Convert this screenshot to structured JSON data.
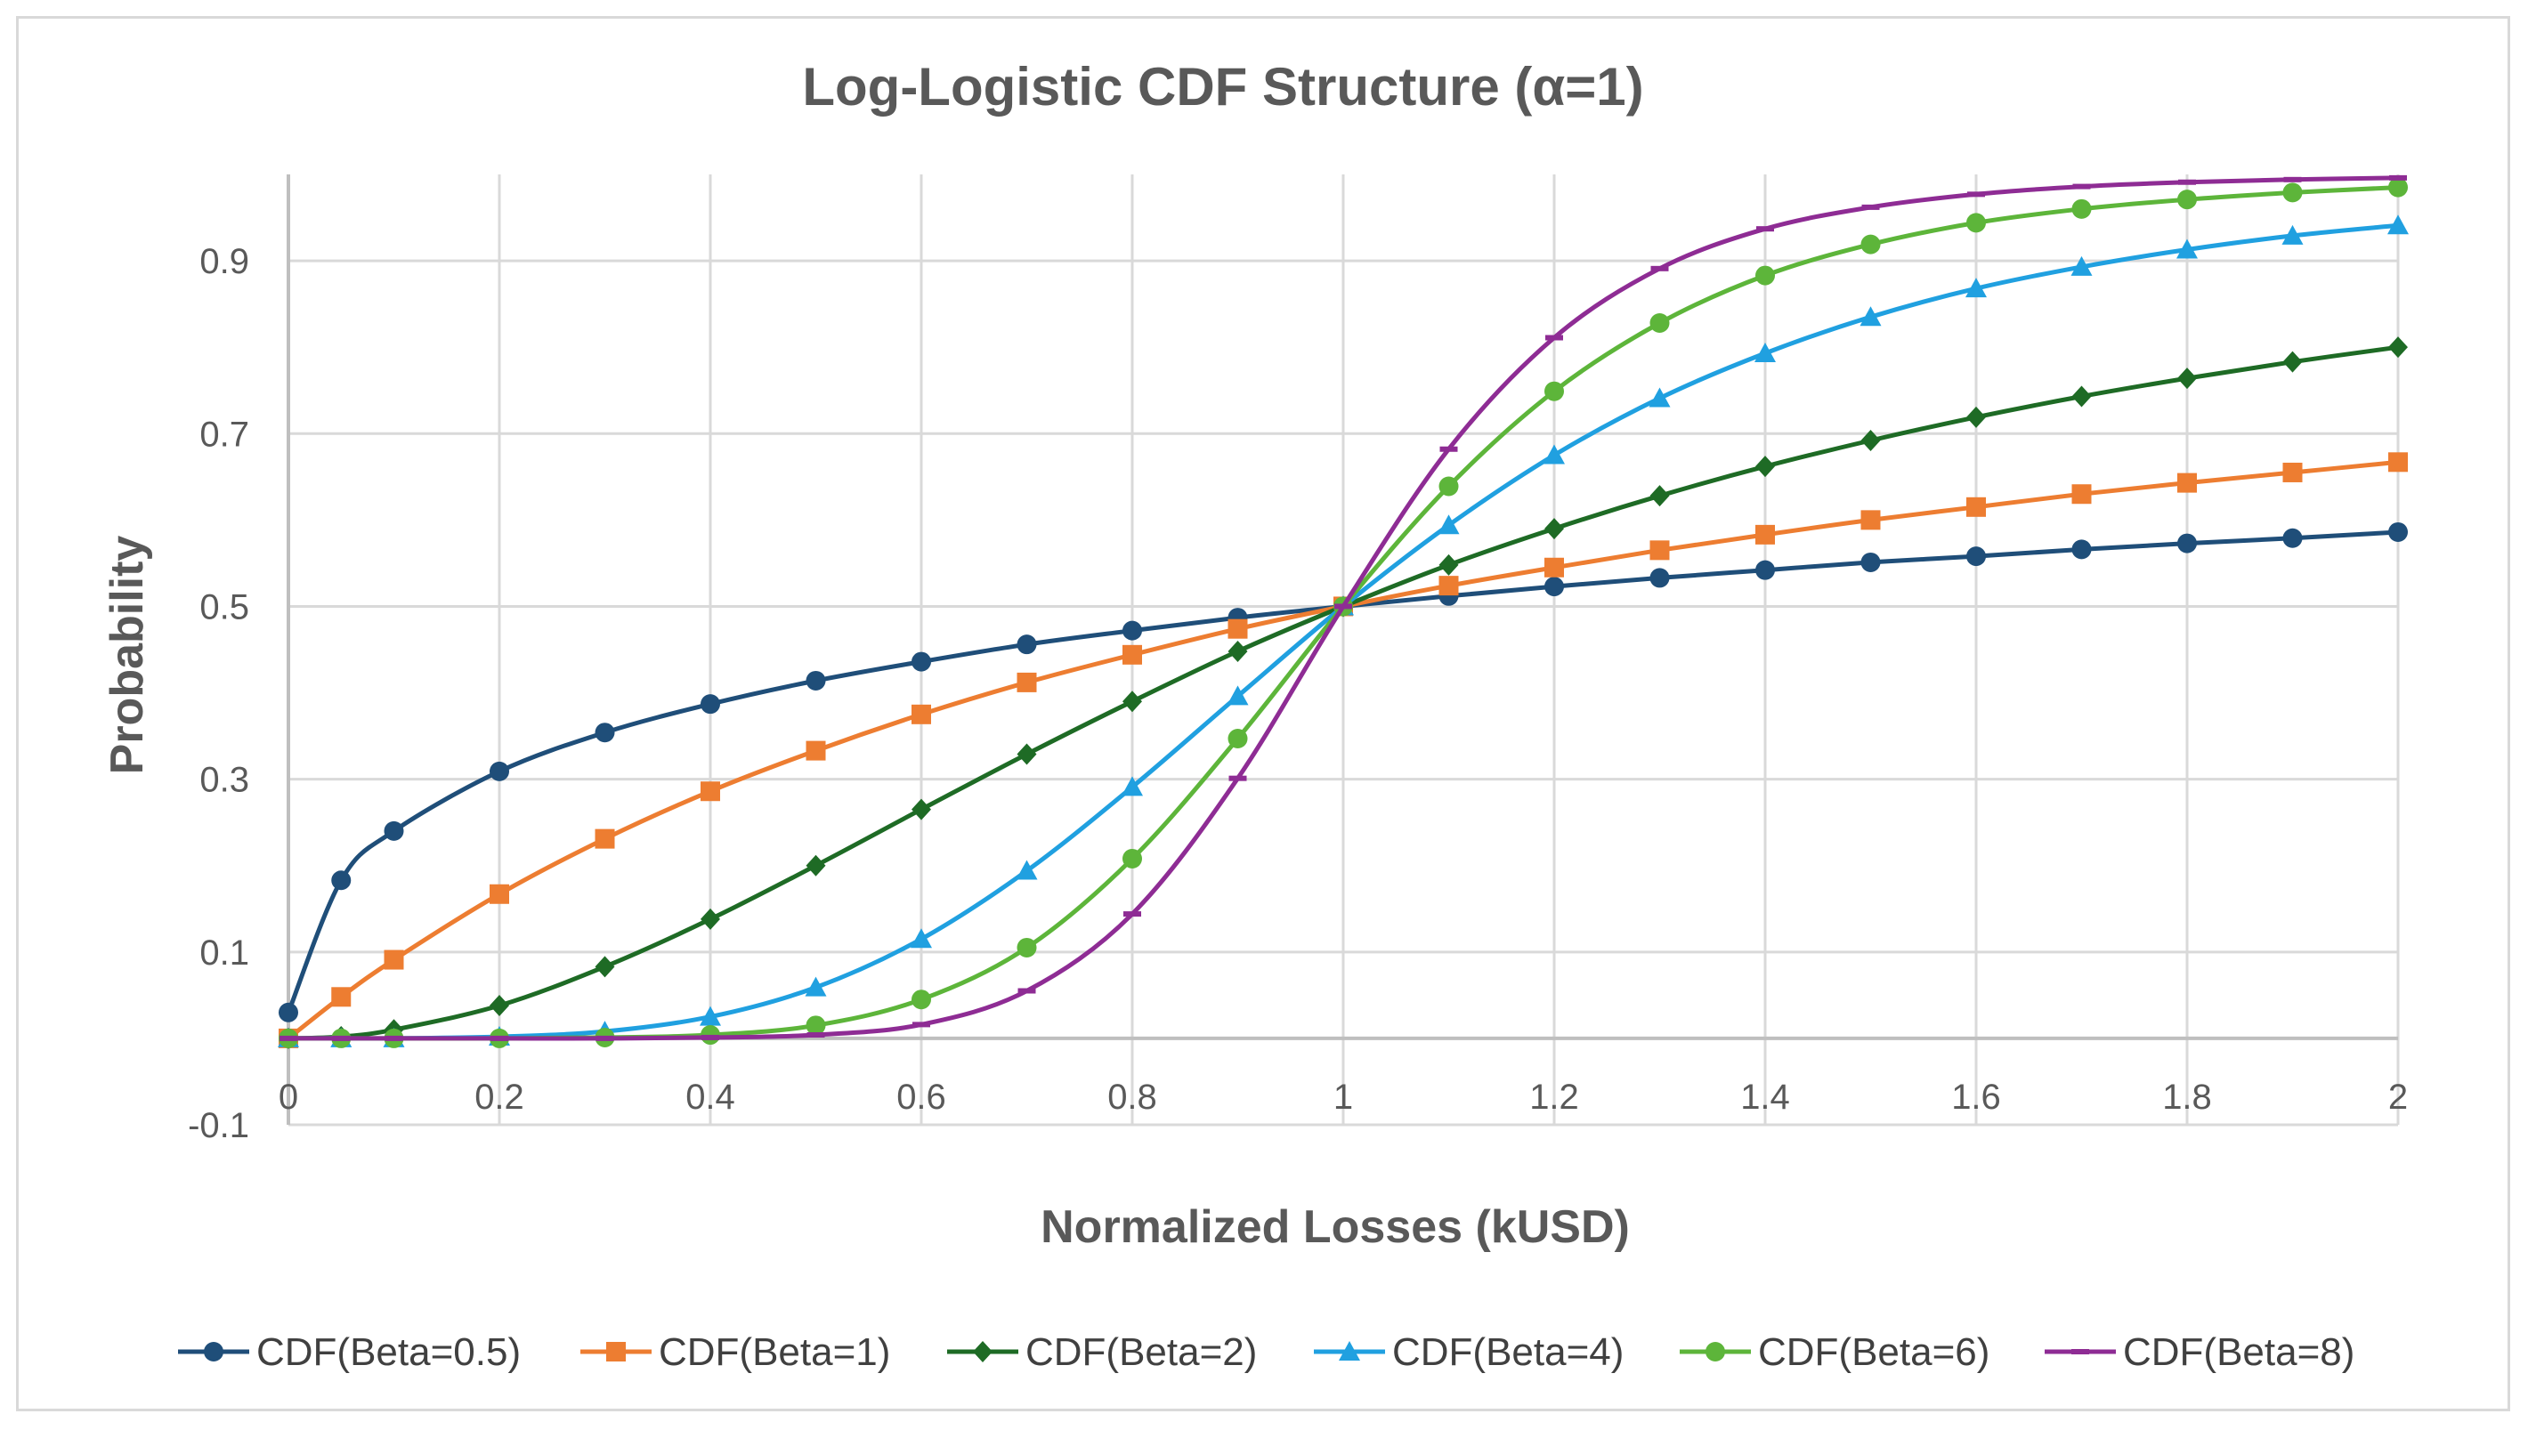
{
  "chart_data": {
    "type": "line",
    "title": "Log-Logistic CDF Structure (α=1)",
    "xlabel": "Normalized Losses (kUSD)",
    "ylabel": "Probability",
    "xlim": [
      0,
      2
    ],
    "ylim": [
      -0.1,
      1.0
    ],
    "x_ticks": [
      "0",
      "0.2",
      "0.4",
      "0.6",
      "0.8",
      "1",
      "1.2",
      "1.4",
      "1.6",
      "1.8",
      "2"
    ],
    "x_tick_values": [
      0,
      0.2,
      0.4,
      0.6,
      0.8,
      1,
      1.2,
      1.4,
      1.6,
      1.8,
      2
    ],
    "y_ticks": [
      "-0.1",
      "0.1",
      "0.3",
      "0.5",
      "0.7",
      "0.9"
    ],
    "y_tick_values": [
      -0.1,
      0.1,
      0.3,
      0.5,
      0.7,
      0.9
    ],
    "grid": true,
    "legend_position": "bottom",
    "x": [
      0,
      0.05,
      0.1,
      0.2,
      0.3,
      0.4,
      0.5,
      0.6,
      0.7,
      0.8,
      0.9,
      1,
      1.1,
      1.2,
      1.3,
      1.4,
      1.5,
      1.6,
      1.7,
      1.8,
      1.9,
      2
    ],
    "series": [
      {
        "name": "CDF(Beta=0.5)",
        "color": "#1f4e79",
        "marker": "circle",
        "values": [
          0.03,
          0.183,
          0.24,
          0.309,
          0.354,
          0.387,
          0.414,
          0.436,
          0.456,
          0.472,
          0.487,
          0.5,
          0.512,
          0.523,
          0.533,
          0.542,
          0.551,
          0.558,
          0.566,
          0.573,
          0.579,
          0.586
        ]
      },
      {
        "name": "CDF(Beta=1)",
        "color": "#ed7d31",
        "marker": "square",
        "values": [
          0.0,
          0.048,
          0.091,
          0.167,
          0.231,
          0.286,
          0.333,
          0.375,
          0.412,
          0.444,
          0.474,
          0.5,
          0.524,
          0.545,
          0.565,
          0.583,
          0.6,
          0.615,
          0.63,
          0.643,
          0.655,
          0.667
        ]
      },
      {
        "name": "CDF(Beta=2)",
        "color": "#1e6b25",
        "marker": "diamond",
        "values": [
          0.0,
          0.002,
          0.01,
          0.038,
          0.083,
          0.138,
          0.2,
          0.265,
          0.329,
          0.39,
          0.448,
          0.5,
          0.548,
          0.59,
          0.628,
          0.662,
          0.692,
          0.719,
          0.743,
          0.764,
          0.783,
          0.8
        ]
      },
      {
        "name": "CDF(Beta=4)",
        "color": "#20a0e0",
        "marker": "triangle",
        "values": [
          0.0,
          0.0,
          0.0,
          0.002,
          0.008,
          0.025,
          0.059,
          0.115,
          0.194,
          0.291,
          0.396,
          0.5,
          0.594,
          0.675,
          0.741,
          0.793,
          0.835,
          0.868,
          0.893,
          0.913,
          0.929,
          0.941
        ]
      },
      {
        "name": "CDF(Beta=6)",
        "color": "#5db53a",
        "marker": "circle",
        "values": [
          0.0,
          0.0,
          0.0,
          0.0,
          0.001,
          0.004,
          0.015,
          0.045,
          0.105,
          0.208,
          0.347,
          0.5,
          0.639,
          0.749,
          0.828,
          0.883,
          0.919,
          0.944,
          0.96,
          0.971,
          0.979,
          0.985
        ]
      },
      {
        "name": "CDF(Beta=8)",
        "color": "#8e2c94",
        "marker": "dash",
        "values": [
          0.0,
          0.0,
          0.0,
          0.0,
          0.0,
          0.001,
          0.004,
          0.016,
          0.055,
          0.144,
          0.301,
          0.5,
          0.682,
          0.811,
          0.891,
          0.937,
          0.962,
          0.977,
          0.986,
          0.991,
          0.994,
          0.996
        ]
      }
    ]
  }
}
